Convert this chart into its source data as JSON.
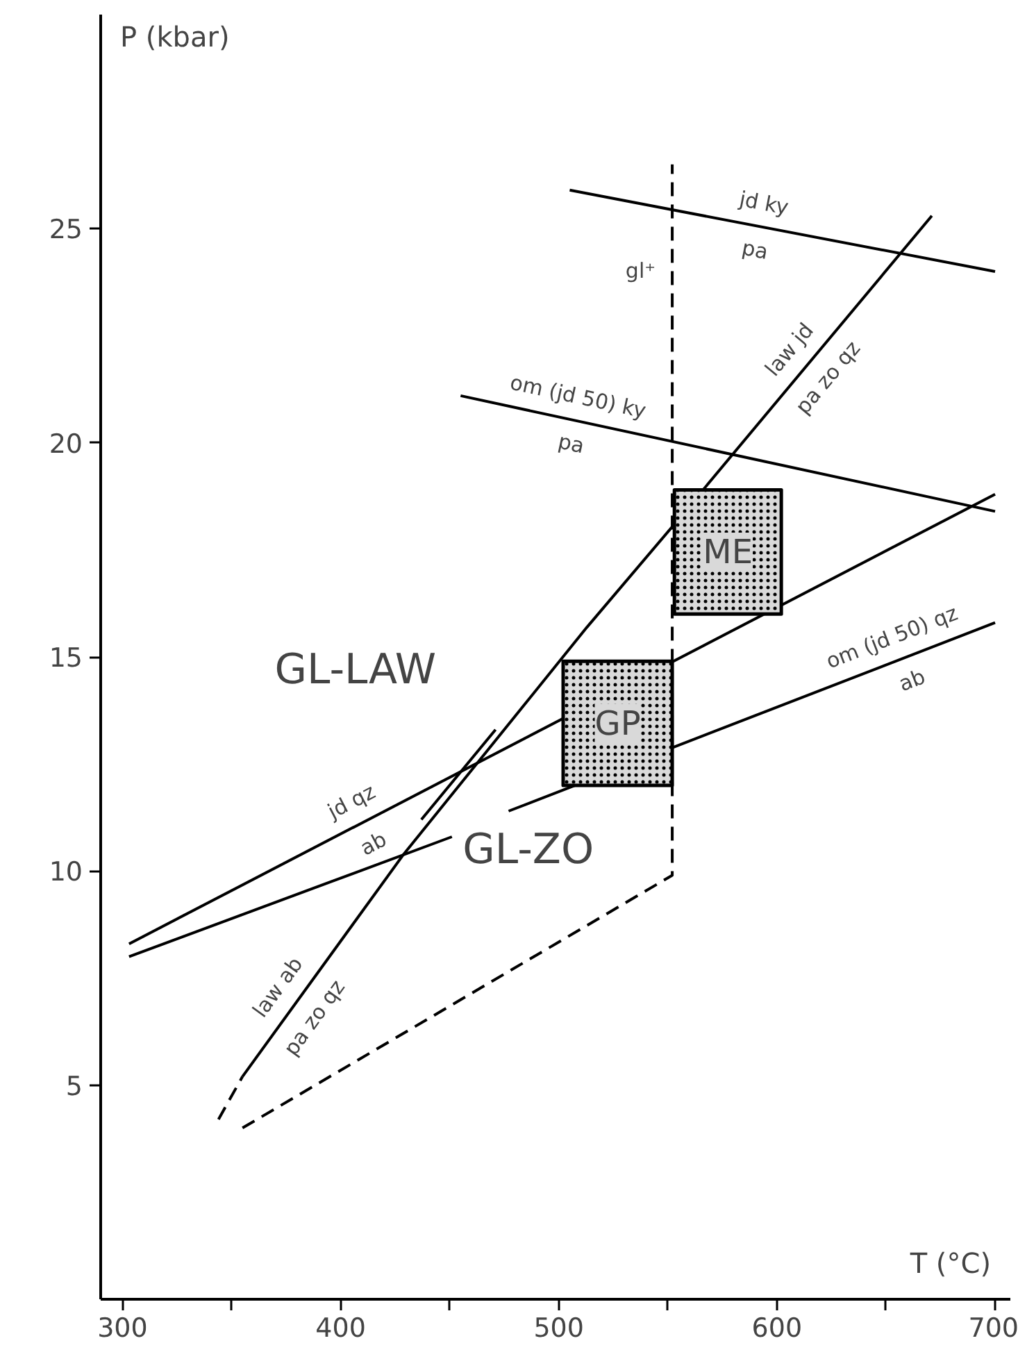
{
  "chart_data": {
    "type": "line",
    "xlabel": "T (°C)",
    "ylabel": "P (kbar)",
    "xlim": [
      290,
      707
    ],
    "ylim": [
      0,
      30
    ],
    "xticks": [
      300,
      {
        "value": 350,
        "label": null
      },
      400,
      {
        "value": 450,
        "label": null
      },
      500,
      {
        "value": 550,
        "label": null
      },
      600,
      {
        "value": 650,
        "label": null
      },
      700
    ],
    "yticks": [
      5,
      10,
      15,
      20,
      25
    ],
    "grid": false,
    "series": [
      {
        "color": "#000000",
        "x": [
          505,
          700
        ],
        "values": [
          25.9,
          24.0
        ]
      },
      {
        "color": "#000000",
        "x": [
          455,
          700
        ],
        "values": [
          21.1,
          18.4
        ]
      },
      {
        "color": "#000000",
        "x": [
          355,
          429,
          513,
          553,
          671
        ],
        "values": [
          5.2,
          10.4,
          15.7,
          18.1,
          25.3
        ]
      },
      {
        "color": "#000000",
        "x": [
          344,
          355
        ],
        "values": [
          4.2,
          5.2
        ],
        "line_style": "dashed"
      },
      {
        "color": "#000000",
        "x": [
          437,
          471
        ],
        "values": [
          11.2,
          13.3
        ]
      },
      {
        "color": "#000000",
        "x": [
          303,
          700
        ],
        "values": [
          8.3,
          18.8
        ]
      },
      {
        "color": "#000000",
        "x": [
          303,
          451,
          464,
          477,
          700
        ],
        "values": [
          8.0,
          10.8,
          null,
          11.4,
          15.8
        ]
      },
      {
        "name": "gl⁺",
        "color": "#000000",
        "x": [
          355,
          552,
          552
        ],
        "values": [
          4.0,
          9.9,
          26.5
        ],
        "line_style": "dashed"
      },
      {
        "type": "area",
        "name": "GP",
        "color": "#d9d9d9",
        "x": [
          502,
          552,
          552,
          502
        ],
        "values": [
          12.0,
          12.0,
          14.9,
          14.9
        ]
      },
      {
        "type": "area",
        "name": "ME",
        "color": "#d9d9d9",
        "x": [
          553,
          602,
          602,
          553
        ],
        "values": [
          16.0,
          16.0,
          18.9,
          18.9
        ]
      }
    ],
    "annotations": [
      {
        "text": "jd ky\npa",
        "x": 592,
        "y": 25.05
      },
      {
        "text": "law  jd\npa zo qz",
        "x": 615,
        "y": 21.88
      },
      {
        "text": "om (jd 50)  ky\npa",
        "x": 508,
        "y": 20.52
      },
      {
        "text": "om (jd 50)  qz\nab",
        "x": 658,
        "y": 14.97
      },
      {
        "text": "jd qz\nab",
        "x": 410,
        "y": 11.13
      },
      {
        "text": "law ab\npa  zo qz",
        "x": 380,
        "y": 6.96
      },
      "GL-LAW",
      "GL-ZO"
    ]
  }
}
